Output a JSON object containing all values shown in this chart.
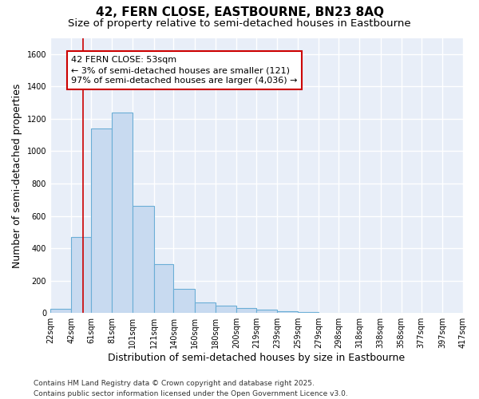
{
  "title1": "42, FERN CLOSE, EASTBOURNE, BN23 8AQ",
  "title2": "Size of property relative to semi-detached houses in Eastbourne",
  "xlabel": "Distribution of semi-detached houses by size in Eastbourne",
  "ylabel": "Number of semi-detached properties",
  "bar_left_edges": [
    22,
    42,
    61,
    81,
    101,
    121,
    140,
    160,
    180,
    200,
    219,
    239,
    259,
    279,
    298,
    318,
    338,
    358,
    377,
    397
  ],
  "bar_widths": [
    20,
    19,
    20,
    20,
    20,
    19,
    20,
    20,
    20,
    19,
    20,
    20,
    20,
    19,
    20,
    20,
    20,
    19,
    20,
    20
  ],
  "bar_heights": [
    25,
    470,
    1140,
    1240,
    660,
    300,
    150,
    65,
    45,
    30,
    20,
    10,
    5,
    3,
    2,
    1,
    1,
    1,
    0,
    0
  ],
  "tick_labels": [
    "22sqm",
    "42sqm",
    "61sqm",
    "81sqm",
    "101sqm",
    "121sqm",
    "140sqm",
    "160sqm",
    "180sqm",
    "200sqm",
    "219sqm",
    "239sqm",
    "259sqm",
    "279sqm",
    "298sqm",
    "318sqm",
    "338sqm",
    "358sqm",
    "377sqm",
    "397sqm",
    "417sqm"
  ],
  "tick_positions": [
    22,
    42,
    61,
    81,
    101,
    121,
    140,
    160,
    180,
    200,
    219,
    239,
    259,
    279,
    298,
    318,
    338,
    358,
    377,
    397,
    417
  ],
  "bar_facecolor": "#c8daf0",
  "bar_edgecolor": "#6baed6",
  "red_line_x": 53,
  "annotation_text": "42 FERN CLOSE: 53sqm\n← 3% of semi-detached houses are smaller (121)\n97% of semi-detached houses are larger (4,036) →",
  "annotation_box_facecolor": "#ffffff",
  "annotation_box_edgecolor": "#cc0000",
  "ylim": [
    0,
    1700
  ],
  "yticks": [
    0,
    200,
    400,
    600,
    800,
    1000,
    1200,
    1400,
    1600
  ],
  "xlim": [
    22,
    417
  ],
  "bg_color": "#ffffff",
  "plot_bg_color": "#e8eef8",
  "grid_color": "#ffffff",
  "footer": "Contains HM Land Registry data © Crown copyright and database right 2025.\nContains public sector information licensed under the Open Government Licence v3.0.",
  "title_fontsize": 11,
  "subtitle_fontsize": 9.5,
  "label_fontsize": 9,
  "tick_fontsize": 7,
  "footer_fontsize": 6.5,
  "annotation_fontsize": 8
}
